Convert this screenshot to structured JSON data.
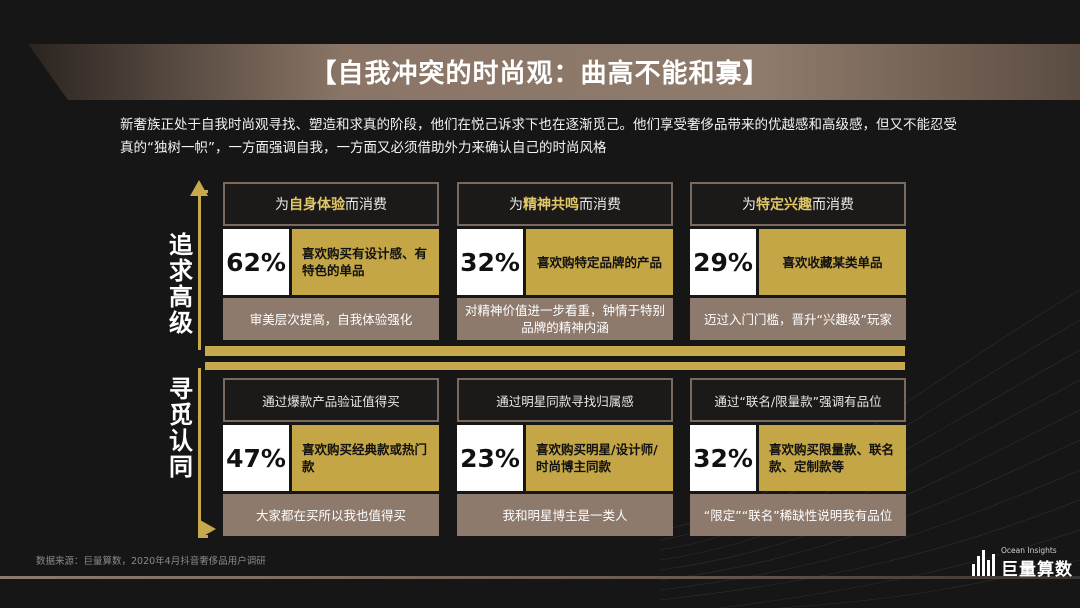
{
  "title": "【自我冲突的时尚观：曲高不能和寡】",
  "intro": {
    "line1": "新奢族正处于自我时尚观寻找、塑造和求真的阶段，他们在悦己诉求下也在逐渐觅己。他们享受奢侈品带来的优越感和高级感，但又不能忍受",
    "line2": "真的“独树一帜”，一方面强调自我，一方面又必须借助外力来确认自己的时尚风格"
  },
  "sections": {
    "top_label": "追求高级",
    "bottom_label": "寻觅认同"
  },
  "cards_top": [
    {
      "head_pre": "为",
      "head_hl": "自身体验",
      "head_post": "而消费",
      "pct": "62%",
      "desc": "喜欢购买有设计感、有特色的单品",
      "foot": "审美层次提高，自我体验强化"
    },
    {
      "head_pre": "为",
      "head_hl": "精神共鸣",
      "head_post": "而消费",
      "pct": "32%",
      "desc": "喜欢购特定品牌的产品",
      "foot": "对精神价值进一步看重，钟情于特别品牌的精神内涵"
    },
    {
      "head_pre": "为",
      "head_hl": "特定兴趣",
      "head_post": "而消费",
      "pct": "29%",
      "desc": "喜欢收藏某类单品",
      "foot": "迈过入门门槛，晋升“兴趣级”玩家"
    }
  ],
  "cards_bottom": [
    {
      "head": "通过爆款产品验证值得买",
      "pct": "47%",
      "desc": "喜欢购买经典款或热门款",
      "foot": "大家都在买所以我也值得买"
    },
    {
      "head": "通过明星同款寻找归属感",
      "pct": "23%",
      "desc": "喜欢购买明星/设计师/时尚博主同款",
      "foot": "我和明星博主是一类人"
    },
    {
      "head": "通过“联名/限量款”强调有品位",
      "pct": "32%",
      "desc": "喜欢购买限量款、联名款、定制款等",
      "foot": "“限定”“联名”稀缺性说明我有品位"
    }
  ],
  "source": "数据来源：巨量算数，2020年4月抖音奢侈品用户调研",
  "logo": {
    "en": "Ocean Insights",
    "cn": "巨量算数"
  },
  "colors": {
    "gold": "#c4a646",
    "taupe": "#8d7a6d",
    "background": "#161616"
  }
}
